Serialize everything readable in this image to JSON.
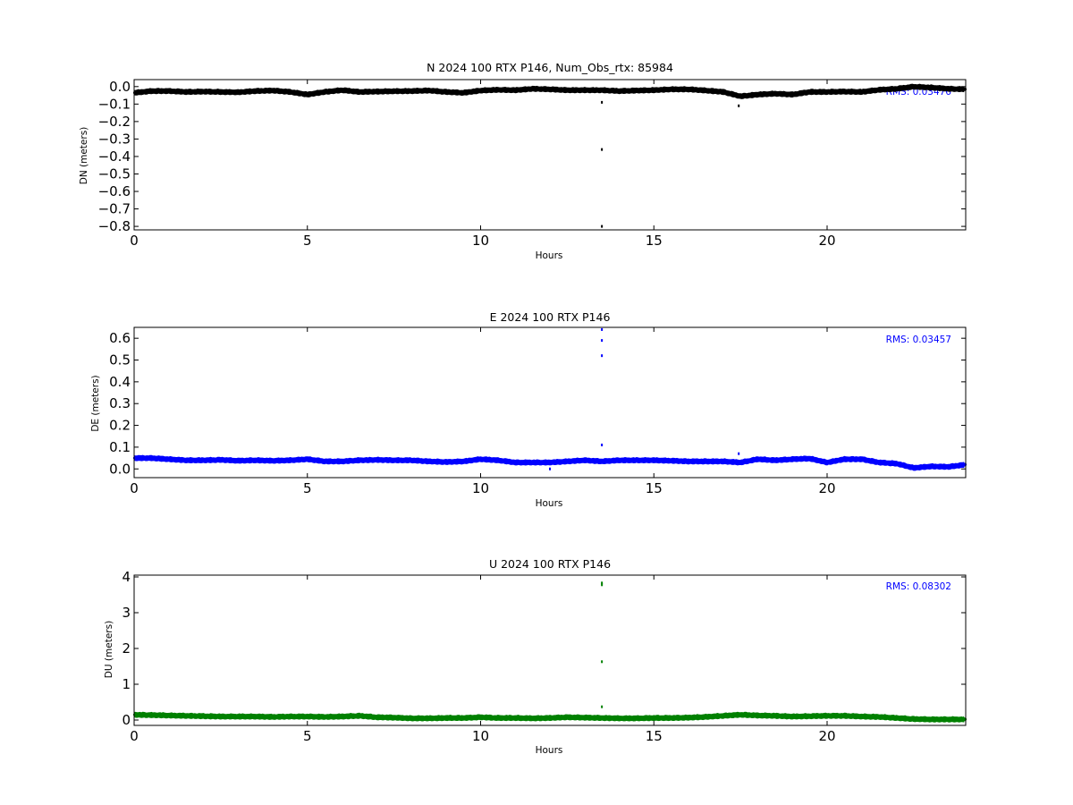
{
  "chart_data": [
    {
      "type": "scatter",
      "title": "N 2024 100 RTX  P146, Num_Obs_rtx: 85984",
      "xlabel": "Hours",
      "ylabel": "DN (meters)",
      "xlim": [
        0,
        24
      ],
      "ylim": [
        -0.82,
        0.04
      ],
      "xticks": [
        0,
        5,
        10,
        15,
        20
      ],
      "yticks": [
        0.0,
        -0.1,
        -0.2,
        -0.3,
        -0.4,
        -0.5,
        -0.6,
        -0.7,
        -0.8
      ],
      "ytick_labels": [
        "0.0",
        "−0.1",
        "−0.2",
        "−0.3",
        "−0.4",
        "−0.5",
        "−0.6",
        "−0.7",
        "−0.8"
      ],
      "color": "#000000",
      "rms_text": "RMS:  0.03476",
      "series": [
        {
          "values": [
            [
              0.0,
              -0.035
            ],
            [
              0.5,
              -0.025
            ],
            [
              1.0,
              -0.025
            ],
            [
              1.5,
              -0.03
            ],
            [
              2.0,
              -0.028
            ],
            [
              2.5,
              -0.03
            ],
            [
              3.0,
              -0.032
            ],
            [
              3.5,
              -0.025
            ],
            [
              4.0,
              -0.022
            ],
            [
              4.5,
              -0.03
            ],
            [
              5.0,
              -0.045
            ],
            [
              5.5,
              -0.03
            ],
            [
              6.0,
              -0.02
            ],
            [
              6.5,
              -0.03
            ],
            [
              7.0,
              -0.028
            ],
            [
              7.5,
              -0.026
            ],
            [
              8.0,
              -0.025
            ],
            [
              8.5,
              -0.022
            ],
            [
              9.0,
              -0.03
            ],
            [
              9.5,
              -0.035
            ],
            [
              10.0,
              -0.022
            ],
            [
              10.5,
              -0.018
            ],
            [
              11.0,
              -0.02
            ],
            [
              11.5,
              -0.012
            ],
            [
              12.0,
              -0.015
            ],
            [
              12.5,
              -0.02
            ],
            [
              13.0,
              -0.02
            ],
            [
              13.5,
              -0.02
            ],
            [
              14.0,
              -0.025
            ],
            [
              14.5,
              -0.022
            ],
            [
              15.0,
              -0.02
            ],
            [
              15.5,
              -0.015
            ],
            [
              16.0,
              -0.015
            ],
            [
              16.5,
              -0.022
            ],
            [
              17.0,
              -0.03
            ],
            [
              17.5,
              -0.055
            ],
            [
              18.0,
              -0.045
            ],
            [
              18.5,
              -0.04
            ],
            [
              19.0,
              -0.045
            ],
            [
              19.5,
              -0.03
            ],
            [
              20.0,
              -0.03
            ],
            [
              20.5,
              -0.028
            ],
            [
              21.0,
              -0.03
            ],
            [
              21.5,
              -0.018
            ],
            [
              22.0,
              -0.012
            ],
            [
              22.5,
              0.0
            ],
            [
              23.0,
              -0.005
            ],
            [
              23.5,
              -0.012
            ],
            [
              24.0,
              -0.015
            ]
          ]
        }
      ],
      "outliers": [
        [
          13.5,
          -0.09
        ],
        [
          13.5,
          -0.36
        ],
        [
          13.5,
          -0.8
        ],
        [
          17.45,
          -0.11
        ]
      ]
    },
    {
      "type": "scatter",
      "title": "E 2024 100 RTX  P146",
      "xlabel": "Hours",
      "ylabel": "DE (meters)",
      "xlim": [
        0,
        24
      ],
      "ylim": [
        -0.04,
        0.65
      ],
      "xticks": [
        0,
        5,
        10,
        15,
        20
      ],
      "yticks": [
        0.0,
        0.1,
        0.2,
        0.3,
        0.4,
        0.5,
        0.6
      ],
      "ytick_labels": [
        "0.0",
        "0.1",
        "0.2",
        "0.3",
        "0.4",
        "0.5",
        "0.6"
      ],
      "color": "#0000ff",
      "rms_text": "RMS:  0.03457",
      "series": [
        {
          "values": [
            [
              0.0,
              0.05
            ],
            [
              0.5,
              0.05
            ],
            [
              1.0,
              0.045
            ],
            [
              1.5,
              0.04
            ],
            [
              2.0,
              0.04
            ],
            [
              2.5,
              0.042
            ],
            [
              3.0,
              0.038
            ],
            [
              3.5,
              0.04
            ],
            [
              4.0,
              0.038
            ],
            [
              4.5,
              0.04
            ],
            [
              5.0,
              0.045
            ],
            [
              5.5,
              0.035
            ],
            [
              6.0,
              0.035
            ],
            [
              6.5,
              0.04
            ],
            [
              7.0,
              0.042
            ],
            [
              7.5,
              0.04
            ],
            [
              8.0,
              0.04
            ],
            [
              8.5,
              0.035
            ],
            [
              9.0,
              0.032
            ],
            [
              9.5,
              0.035
            ],
            [
              10.0,
              0.045
            ],
            [
              10.5,
              0.04
            ],
            [
              11.0,
              0.03
            ],
            [
              11.5,
              0.03
            ],
            [
              12.0,
              0.03
            ],
            [
              12.5,
              0.035
            ],
            [
              13.0,
              0.04
            ],
            [
              13.5,
              0.035
            ],
            [
              14.0,
              0.04
            ],
            [
              14.5,
              0.04
            ],
            [
              15.0,
              0.04
            ],
            [
              15.5,
              0.038
            ],
            [
              16.0,
              0.035
            ],
            [
              16.5,
              0.035
            ],
            [
              17.0,
              0.035
            ],
            [
              17.5,
              0.03
            ],
            [
              18.0,
              0.045
            ],
            [
              18.5,
              0.04
            ],
            [
              19.0,
              0.045
            ],
            [
              19.5,
              0.048
            ],
            [
              20.0,
              0.03
            ],
            [
              20.5,
              0.045
            ],
            [
              21.0,
              0.045
            ],
            [
              21.5,
              0.03
            ],
            [
              22.0,
              0.025
            ],
            [
              22.5,
              0.005
            ],
            [
              23.0,
              0.012
            ],
            [
              23.5,
              0.01
            ],
            [
              24.0,
              0.02
            ]
          ]
        }
      ],
      "outliers": [
        [
          13.5,
          0.64
        ],
        [
          13.5,
          0.59
        ],
        [
          13.5,
          0.52
        ],
        [
          13.5,
          0.11
        ],
        [
          12.0,
          0.0
        ],
        [
          17.45,
          0.07
        ]
      ]
    },
    {
      "type": "scatter",
      "title": "U 2024 100 RTX  P146",
      "xlabel": "Hours",
      "ylabel": "DU (meters)",
      "xlim": [
        0,
        24
      ],
      "ylim": [
        -0.15,
        4.05
      ],
      "xticks": [
        0,
        5,
        10,
        15,
        20
      ],
      "yticks": [
        0,
        1,
        2,
        3,
        4
      ],
      "ytick_labels": [
        "0",
        "1",
        "2",
        "3",
        "4"
      ],
      "color": "#008000",
      "rms_text": "RMS:  0.08302",
      "series": [
        {
          "values": [
            [
              0.0,
              0.15
            ],
            [
              0.5,
              0.14
            ],
            [
              1.0,
              0.13
            ],
            [
              1.5,
              0.12
            ],
            [
              2.0,
              0.11
            ],
            [
              2.5,
              0.1
            ],
            [
              3.0,
              0.1
            ],
            [
              3.5,
              0.1
            ],
            [
              4.0,
              0.09
            ],
            [
              4.5,
              0.1
            ],
            [
              5.0,
              0.1
            ],
            [
              5.5,
              0.09
            ],
            [
              6.0,
              0.1
            ],
            [
              6.5,
              0.12
            ],
            [
              7.0,
              0.08
            ],
            [
              7.5,
              0.07
            ],
            [
              8.0,
              0.05
            ],
            [
              8.5,
              0.05
            ],
            [
              9.0,
              0.06
            ],
            [
              9.5,
              0.06
            ],
            [
              10.0,
              0.08
            ],
            [
              10.5,
              0.06
            ],
            [
              11.0,
              0.06
            ],
            [
              11.5,
              0.05
            ],
            [
              12.0,
              0.06
            ],
            [
              12.5,
              0.08
            ],
            [
              13.0,
              0.07
            ],
            [
              13.5,
              0.06
            ],
            [
              14.0,
              0.05
            ],
            [
              14.5,
              0.05
            ],
            [
              15.0,
              0.06
            ],
            [
              15.5,
              0.06
            ],
            [
              16.0,
              0.07
            ],
            [
              16.5,
              0.09
            ],
            [
              17.0,
              0.12
            ],
            [
              17.5,
              0.15
            ],
            [
              18.0,
              0.13
            ],
            [
              18.5,
              0.12
            ],
            [
              19.0,
              0.1
            ],
            [
              19.5,
              0.11
            ],
            [
              20.0,
              0.12
            ],
            [
              20.5,
              0.12
            ],
            [
              21.0,
              0.1
            ],
            [
              21.5,
              0.09
            ],
            [
              22.0,
              0.06
            ],
            [
              22.5,
              0.03
            ],
            [
              23.0,
              0.02
            ],
            [
              23.5,
              0.02
            ],
            [
              24.0,
              0.02
            ]
          ]
        }
      ],
      "outliers": [
        [
          13.5,
          3.83
        ],
        [
          13.5,
          3.78
        ],
        [
          13.5,
          1.63
        ],
        [
          13.5,
          0.37
        ]
      ]
    }
  ]
}
